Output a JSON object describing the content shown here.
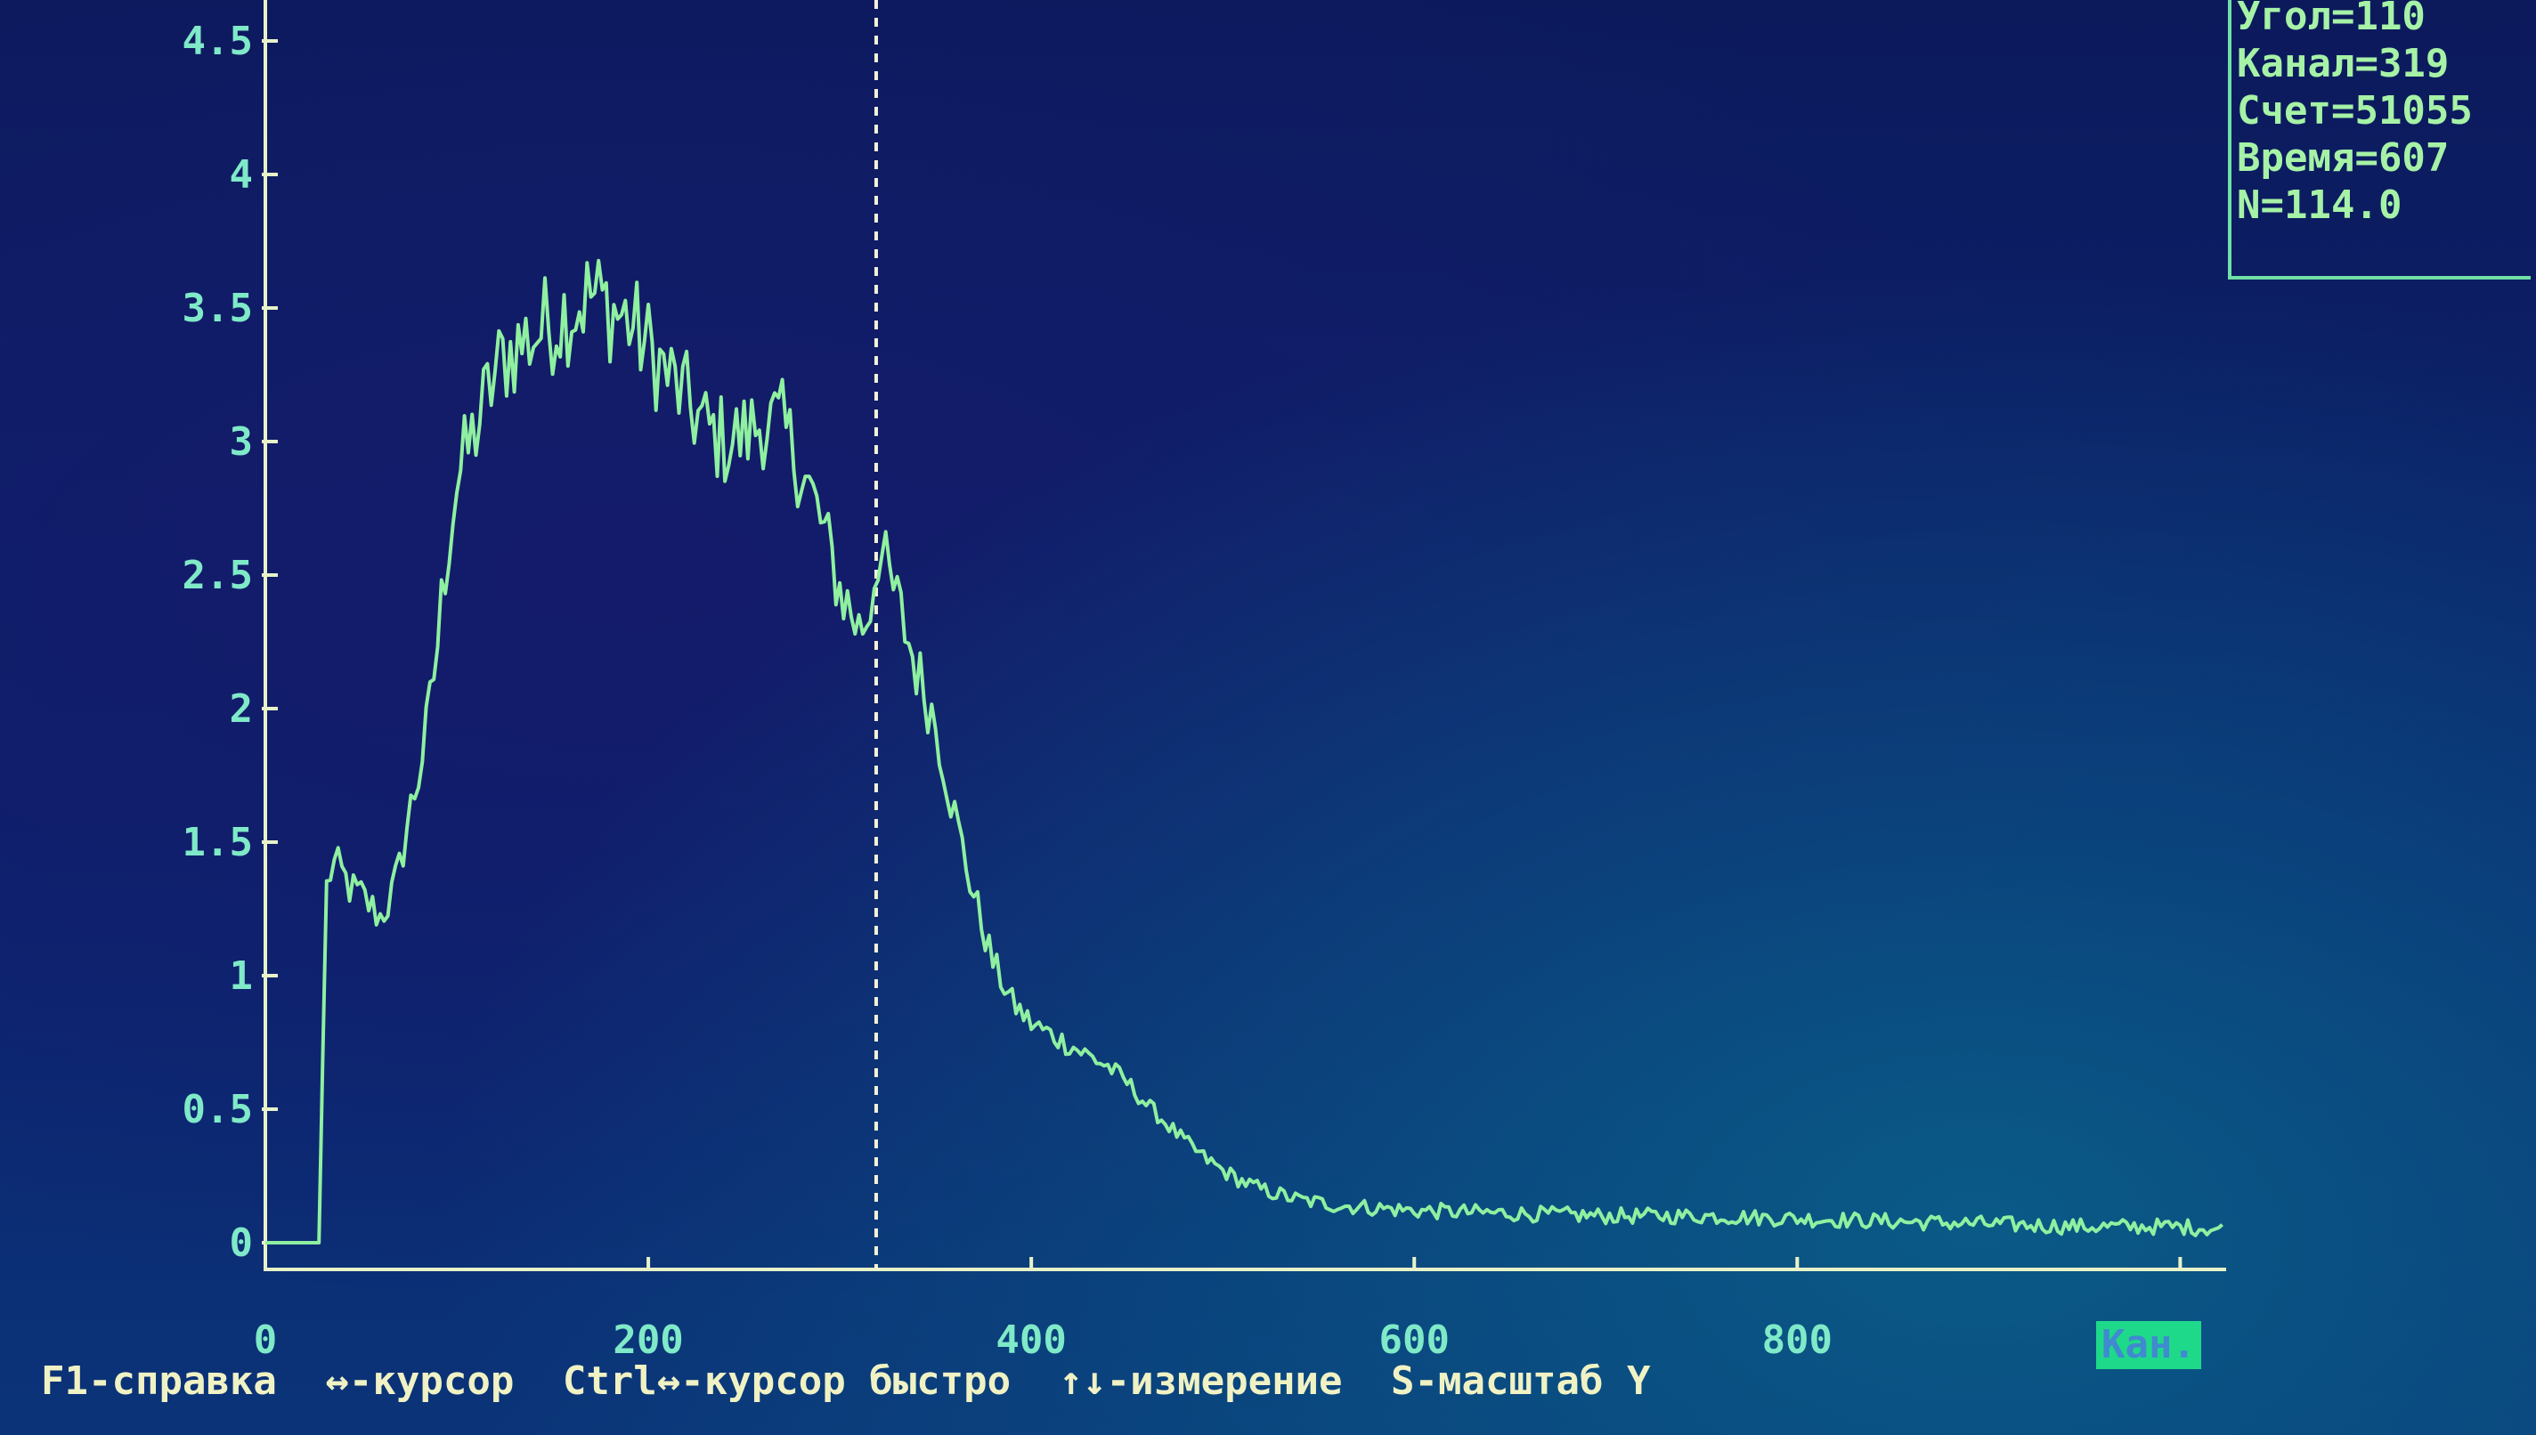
{
  "info_panel": {
    "angle": "Угол=110",
    "channel": "Канал=319",
    "count": "Счет=51055",
    "time": "Время=607",
    "n": "N=114.0"
  },
  "help_bar": {
    "help": "F1-справка",
    "cursor": "↔-курсор",
    "fast_cursor": "Ctrl↔-курсор быстро",
    "measure": "↑↓-измерение",
    "scale": "S-масштаб Y"
  },
  "axis_unit": "Кан.",
  "colors": {
    "trace": "#8ff0a0",
    "axis": "#e8f2c8",
    "cursor": "#f2f2d8",
    "tick_text": "#7fe9c8",
    "badge": "#1fd98a"
  },
  "chart_data": {
    "type": "line",
    "xlim": [
      0,
      1024
    ],
    "ylim": [
      0,
      4.5
    ],
    "x_ticks": [
      0,
      200,
      400,
      600,
      800
    ],
    "y_ticks": [
      0,
      0.5,
      1,
      1.5,
      2,
      2.5,
      3,
      3.5,
      4,
      4.5
    ],
    "y_tick_labels": [
      "0",
      "0.5",
      "1",
      "1.5",
      "2",
      "2.5",
      "3",
      "3.5",
      "4",
      "4.5"
    ],
    "x_tick_labels": [
      "0",
      "200",
      "400",
      "600",
      "800"
    ],
    "cursor_x": 319,
    "series": [
      {
        "points": [
          [
            0,
            0
          ],
          [
            29,
            0
          ],
          [
            30,
            0.7
          ],
          [
            31,
            1.3
          ],
          [
            35,
            1.42
          ],
          [
            40,
            1.38
          ],
          [
            45,
            1.32
          ],
          [
            50,
            1.3
          ],
          [
            55,
            1.26
          ],
          [
            60,
            1.22
          ],
          [
            65,
            1.28
          ],
          [
            70,
            1.4
          ],
          [
            75,
            1.6
          ],
          [
            80,
            1.75
          ],
          [
            85,
            1.95
          ],
          [
            90,
            2.25
          ],
          [
            95,
            2.6
          ],
          [
            100,
            2.85
          ],
          [
            105,
            2.95
          ],
          [
            110,
            3.05
          ],
          [
            115,
            3.15
          ],
          [
            120,
            3.25
          ],
          [
            125,
            3.32
          ],
          [
            130,
            3.35
          ],
          [
            140,
            3.4
          ],
          [
            150,
            3.45
          ],
          [
            160,
            3.5
          ],
          [
            170,
            3.55
          ],
          [
            180,
            3.5
          ],
          [
            190,
            3.45
          ],
          [
            200,
            3.35
          ],
          [
            210,
            3.25
          ],
          [
            220,
            3.15
          ],
          [
            230,
            3.05
          ],
          [
            240,
            3.0
          ],
          [
            250,
            3.02
          ],
          [
            260,
            3.08
          ],
          [
            270,
            3.05
          ],
          [
            280,
            2.9
          ],
          [
            290,
            2.7
          ],
          [
            300,
            2.45
          ],
          [
            310,
            2.3
          ],
          [
            315,
            2.35
          ],
          [
            320,
            2.6
          ],
          [
            325,
            2.5
          ],
          [
            330,
            2.4
          ],
          [
            340,
            2.15
          ],
          [
            350,
            1.95
          ],
          [
            360,
            1.6
          ],
          [
            370,
            1.3
          ],
          [
            380,
            1.05
          ],
          [
            390,
            0.9
          ],
          [
            400,
            0.82
          ],
          [
            410,
            0.78
          ],
          [
            420,
            0.74
          ],
          [
            430,
            0.7
          ],
          [
            440,
            0.66
          ],
          [
            450,
            0.6
          ],
          [
            460,
            0.52
          ],
          [
            470,
            0.45
          ],
          [
            480,
            0.38
          ],
          [
            490,
            0.32
          ],
          [
            500,
            0.27
          ],
          [
            510,
            0.23
          ],
          [
            520,
            0.2
          ],
          [
            540,
            0.16
          ],
          [
            560,
            0.14
          ],
          [
            580,
            0.13
          ],
          [
            600,
            0.12
          ],
          [
            650,
            0.11
          ],
          [
            700,
            0.1
          ],
          [
            750,
            0.1
          ],
          [
            800,
            0.09
          ],
          [
            850,
            0.08
          ],
          [
            900,
            0.07
          ],
          [
            950,
            0.06
          ],
          [
            1000,
            0.06
          ],
          [
            1023,
            0.05
          ]
        ]
      }
    ]
  }
}
